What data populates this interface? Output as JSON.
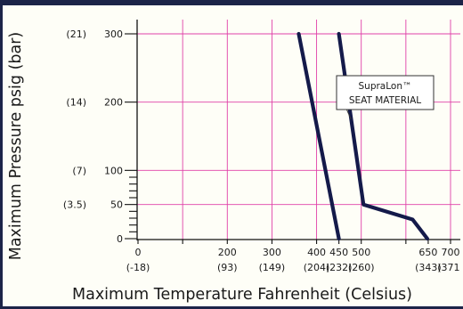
{
  "chart_data": {
    "type": "line",
    "title": "",
    "xlabel": "Maximum Temperature Fahrenheit (Celsius)",
    "ylabel": "Maximum Pressure psig (bar)",
    "xlim": [
      0,
      725
    ],
    "ylim": [
      0,
      320
    ],
    "grid": true,
    "x_ticks": [
      {
        "value": 0,
        "label": "0",
        "sublabel": "(-18)"
      },
      {
        "value": 100,
        "label": "",
        "sublabel": ""
      },
      {
        "value": 200,
        "label": "200",
        "sublabel": "(93)"
      },
      {
        "value": 300,
        "label": "300",
        "sublabel": "(149)"
      },
      {
        "value": 400,
        "label": "400",
        "sublabel": "(204)"
      },
      {
        "value": 450,
        "label": "450",
        "sublabel": "(232)"
      },
      {
        "value": 500,
        "label": "500",
        "sublabel": "(260)"
      },
      {
        "value": 600,
        "label": "",
        "sublabel": ""
      },
      {
        "value": 650,
        "label": "650",
        "sublabel": "(343)"
      },
      {
        "value": 700,
        "label": "700",
        "sublabel": "(371)"
      }
    ],
    "y_ticks": [
      {
        "value": 0,
        "label": "0",
        "sublabel": ""
      },
      {
        "value": 50,
        "label": "50",
        "sublabel": "(3.5)"
      },
      {
        "value": 100,
        "label": "100",
        "sublabel": "(7)"
      },
      {
        "value": 200,
        "label": "200",
        "sublabel": "(14)"
      },
      {
        "value": 300,
        "label": "300",
        "sublabel": "(21)"
      }
    ],
    "y_minor_ticks": [
      10,
      20,
      30,
      40,
      60,
      70,
      80,
      90
    ],
    "series": [
      {
        "name": "",
        "points": [
          {
            "x": 360,
            "y": 300
          },
          {
            "x": 450,
            "y": 0
          }
        ]
      },
      {
        "name": "",
        "points": [
          {
            "x": 450,
            "y": 300
          },
          {
            "x": 505,
            "y": 50
          },
          {
            "x": 615,
            "y": 28
          },
          {
            "x": 648,
            "y": 0
          }
        ]
      }
    ],
    "annotation": {
      "line1": "SupraLon™",
      "line2": "SEAT MATERIAL",
      "points_to": {
        "x": 477,
        "y": 175
      }
    }
  },
  "colors": {
    "grid": "#e040a8",
    "series": "#141a4a",
    "frame": "#1c2448"
  }
}
